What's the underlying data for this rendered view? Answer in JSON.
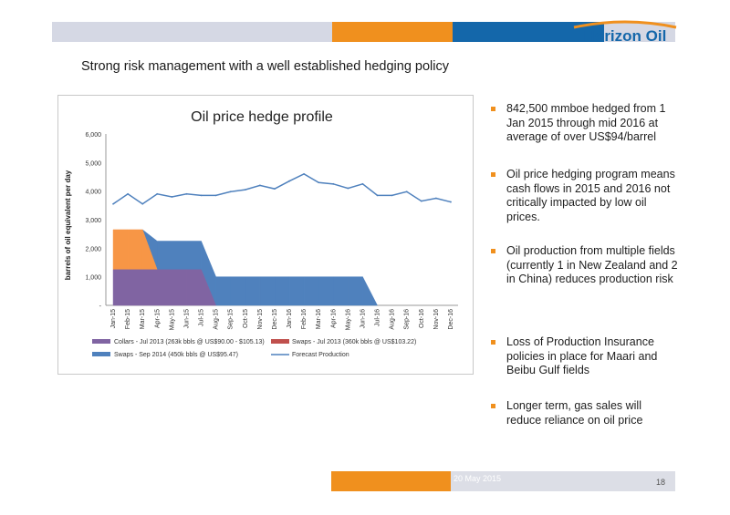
{
  "header": {
    "logo_text": "Horizon Oil",
    "colors": {
      "gray": "#d5d8e4",
      "orange": "#f0901e",
      "blue": "#1467aa"
    }
  },
  "slide": {
    "title": "Strong risk management with a well established hedging policy"
  },
  "bullets": [
    "842,500 mmboe hedged from 1 Jan 2015 through mid 2016 at average of over US$94/barrel",
    "Oil price hedging program means cash flows in 2015 and 2016 not critically impacted by low oil prices.",
    "Oil production from multiple fields (currently 1 in New Zealand and 2 in China) reduces production risk",
    "Loss of Production Insurance policies in place for Maari and Beibu Gulf fields",
    "Longer term, gas sales will reduce reliance on oil price"
  ],
  "footer": {
    "date": "20 May 2015",
    "page": "18"
  },
  "chart_data": {
    "type": "area",
    "title": "Oil price hedge profile",
    "ylabel": "barrels of oil equivalent per day",
    "xlabel": "",
    "ylim": [
      0,
      6000
    ],
    "y_ticks": [
      "-",
      "1,000",
      "2,000",
      "3,000",
      "4,000",
      "5,000",
      "6,000"
    ],
    "categories": [
      "Jan-15",
      "Feb-15",
      "Mar-15",
      "Apr-15",
      "May-15",
      "Jun-15",
      "Jul-15",
      "Aug-15",
      "Sep-15",
      "Oct-15",
      "Nov-15",
      "Dec-15",
      "Jan-16",
      "Feb-16",
      "Mar-16",
      "Apr-16",
      "May-16",
      "Jun-16",
      "Jul-16",
      "Aug-16",
      "Sep-16",
      "Oct-16",
      "Nov-16",
      "Dec-16"
    ],
    "series": [
      {
        "name": "Collars - Jul 2013 (263k bbls @ US$90.00 - $105.13)",
        "kind": "area",
        "color": "#8064a2",
        "values": [
          1250,
          1250,
          1250,
          1250,
          1250,
          1250,
          1250,
          0,
          0,
          0,
          0,
          0,
          0,
          0,
          0,
          0,
          0,
          0,
          0,
          0,
          0,
          0,
          0,
          0
        ]
      },
      {
        "name": "Swaps - Jul 2013 (360k bbls @ US$103.22)",
        "kind": "area",
        "color": "#f79646",
        "values": [
          1400,
          1400,
          1400,
          0,
          0,
          0,
          0,
          0,
          0,
          0,
          0,
          0,
          0,
          0,
          0,
          0,
          0,
          0,
          0,
          0,
          0,
          0,
          0,
          0
        ]
      },
      {
        "name": "Swaps - Sep 2014 (450k bbls @ US$95.47)",
        "kind": "area",
        "color": "#4f81bd",
        "values": [
          0,
          0,
          0,
          1000,
          1000,
          1000,
          1000,
          1000,
          1000,
          1000,
          1000,
          1000,
          1000,
          1000,
          1000,
          1000,
          1000,
          1000,
          0,
          0,
          0,
          0,
          0,
          0
        ]
      },
      {
        "name": "Forecast Production",
        "kind": "line",
        "color": "#4f81bd",
        "values": [
          3550,
          3900,
          3550,
          3900,
          3800,
          3900,
          3850,
          3850,
          3980,
          4050,
          4200,
          4080,
          4350,
          4600,
          4300,
          4250,
          4100,
          4250,
          3850,
          3850,
          3980,
          3650,
          3750,
          3620
        ]
      }
    ],
    "legend_labels": {
      "collars": "Collars - Jul 2013 (263k bbls @ US$90.00 - $105.13)",
      "swaps_jul": "Swaps - Jul 2013 (360k bbls @ US$103.22)",
      "swaps_sep": "Swaps - Sep 2014 (450k bbls @ US$95.47)",
      "forecast": "Forecast Production"
    },
    "legend_position": "bottom",
    "grid": false
  }
}
